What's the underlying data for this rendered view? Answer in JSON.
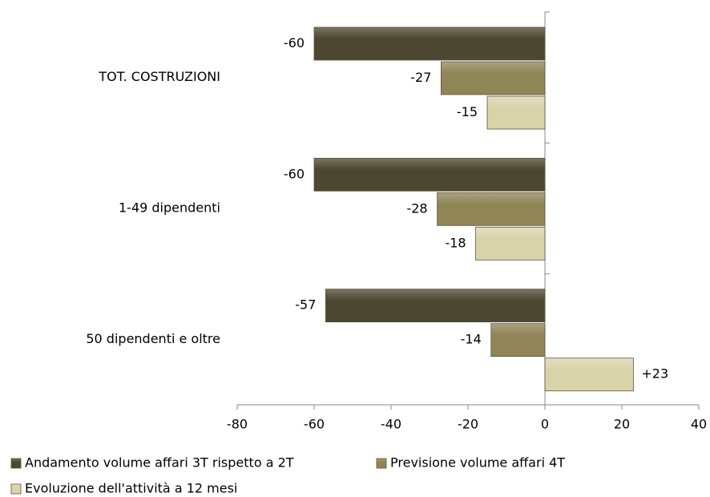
{
  "chart_data": {
    "type": "hbar",
    "categories": [
      "TOT. COSTRUZIONI",
      "1-49 dipendenti",
      "50 dipendenti e oltre"
    ],
    "series": [
      {
        "name": "Andamento volume affari 3T rispetto a 2T",
        "color": "#4b4731",
        "values": [
          -60,
          -60,
          -57
        ],
        "value_labels": [
          "-60",
          "-60",
          "-57"
        ]
      },
      {
        "name": "Previsione volume affari 4T",
        "color": "#8f8556",
        "values": [
          -27,
          -28,
          -14
        ],
        "value_labels": [
          "-27",
          "-28",
          "-14"
        ]
      },
      {
        "name": "Evoluzione dell'attività a 12 mesi",
        "color": "#d9d3aa",
        "values": [
          -15,
          -18,
          23
        ],
        "value_labels": [
          "-15",
          "-18",
          "+23"
        ]
      }
    ],
    "xlim": [
      -80,
      40
    ],
    "xticks": [
      -80,
      -60,
      -40,
      -20,
      0,
      20,
      40
    ],
    "legend": "bottom"
  }
}
